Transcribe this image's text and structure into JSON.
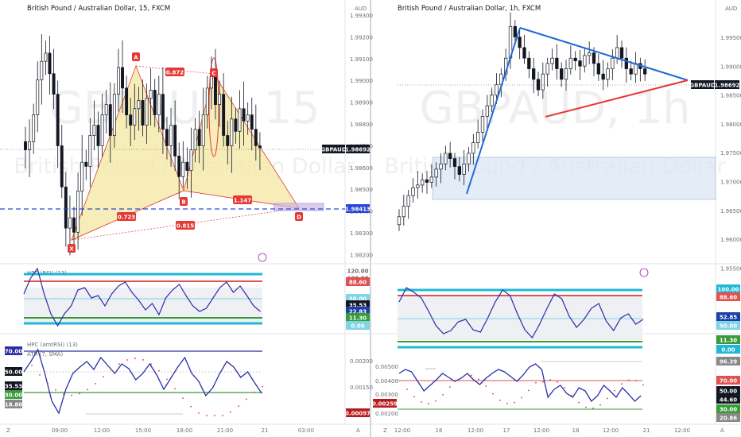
{
  "left": {
    "title": "British Pound / Australian Dollar, 15, FXCM",
    "watermark": "GBPAUD, 15",
    "watermark_sub": "British Pound / Australian Dollar",
    "currency": "AUD",
    "price_ticks": [
      "1.99300",
      "1.99200",
      "1.99100",
      "1.99000",
      "1.98900",
      "1.98800",
      "1.98700",
      "1.98600",
      "1.98500",
      "1.98400",
      "1.98300",
      "1.98200"
    ],
    "last_label": "GBPAUD",
    "last_price": "1.98692",
    "line_price": "1.98413",
    "time_ticks": [
      "09:00",
      "12:00",
      "15:00",
      "18:00",
      "21:00",
      "21",
      "03:00"
    ],
    "pattern_points": [
      "X",
      "A",
      "B",
      "C",
      "D"
    ],
    "ratios": [
      "0.872",
      "0.723",
      "1.147",
      "0.815"
    ],
    "rsi_title": "HPC (RSI) (13)",
    "rsi_labels": [
      "120.00",
      "100.00",
      "88.60",
      "50.00",
      "35.53",
      "22.83",
      "11.30",
      "0.00"
    ],
    "ind_title": "HPC (amtRSI) (13)",
    "atr_title": "ATR (7, SMA)",
    "ind_labels_left": [
      "70.00",
      "50.00",
      "35.53",
      "30.00",
      "18.80"
    ],
    "ind_labels_right": [
      "0.00200",
      "0.00150",
      "0.00097"
    ]
  },
  "right": {
    "title": "British Pound / Australian Dollar, 1h, FXCM",
    "watermark": "GBPAUD, 1h",
    "watermark_sub": "British Pound / Australian Dollar",
    "currency": "AUD",
    "price_ticks": [
      "1.99500",
      "1.99000",
      "1.98500",
      "1.98000",
      "1.97500",
      "1.97000",
      "1.96500",
      "1.96000",
      "1.95500"
    ],
    "last_label": "GBPAUD",
    "last_price": "1.98692",
    "time_ticks": [
      "12:00",
      "16",
      "12:00",
      "17",
      "12:00",
      "18",
      "12:00",
      "21",
      "12:00"
    ],
    "rsi_labels": [
      "100.00",
      "88.60",
      "52.85",
      "50.00",
      "11.30",
      "0.00"
    ],
    "ind_labels_left": [
      "0.00500",
      "0.00400",
      "0.00300",
      "0.00259",
      "0.00200"
    ],
    "ind_labels_right": [
      "96.39",
      "70.00",
      "50.00",
      "44.60",
      "30.00",
      "20.86"
    ]
  },
  "colors": {
    "up": "#131722",
    "harmonic_fill": "#f5e9a8",
    "harmonic_line": "#e53935",
    "trend_blue": "#1e6bd6",
    "trend_red": "#e53935",
    "zone": "#dbe6f6",
    "rsi_line": "#2a2ea8",
    "cyan": "#1fb8d6",
    "green": "#3a9a3a"
  },
  "chart_data": [
    {
      "type": "candlestick",
      "title": "British Pound / Australian Dollar, 15, FXCM",
      "ylim": [
        1.9815,
        1.9935
      ],
      "close": [
        1.9868,
        1.9872,
        1.9885,
        1.9902,
        1.9911,
        1.9915,
        1.9905,
        1.9895,
        1.987,
        1.985,
        1.983,
        1.9835,
        1.9828,
        1.9848,
        1.9862,
        1.986,
        1.9875,
        1.988,
        1.987,
        1.9885,
        1.989,
        1.9875,
        1.9895,
        1.9908,
        1.9898,
        1.9885,
        1.988,
        1.9888,
        1.9892,
        1.988,
        1.9893,
        1.9897,
        1.9885,
        1.9895,
        1.9878,
        1.987,
        1.988,
        1.9865,
        1.9855,
        1.9862,
        1.9858,
        1.9868,
        1.9878,
        1.987,
        1.9885,
        1.9898,
        1.9905,
        1.989,
        1.9895,
        1.9875,
        1.987,
        1.9883,
        1.9877,
        1.9888,
        1.9882,
        1.9885,
        1.9878,
        1.987,
        1.9869
      ],
      "last": 1.98692,
      "level_line": 1.98413
    },
    {
      "type": "candlestick",
      "title": "British Pound / Australian Dollar, 1h, FXCM",
      "ylim": [
        1.952,
        1.998
      ],
      "close": [
        1.96,
        1.962,
        1.964,
        1.9655,
        1.966,
        1.967,
        1.9665,
        1.9675,
        1.969,
        1.97,
        1.972,
        1.971,
        1.9695,
        1.968,
        1.97,
        1.972,
        1.974,
        1.976,
        1.979,
        1.981,
        1.983,
        1.985,
        1.987,
        1.99,
        1.996,
        1.994,
        1.992,
        1.99,
        1.988,
        1.986,
        1.984,
        1.987,
        1.989,
        1.99,
        1.988,
        1.986,
        1.988,
        1.99,
        1.9895,
        1.9885,
        1.9905,
        1.991,
        1.989,
        1.987,
        1.986,
        1.988,
        1.99,
        1.992,
        1.99,
        1.988,
        1.987,
        1.989,
        1.988,
        1.987
      ],
      "last": 1.98692
    }
  ]
}
